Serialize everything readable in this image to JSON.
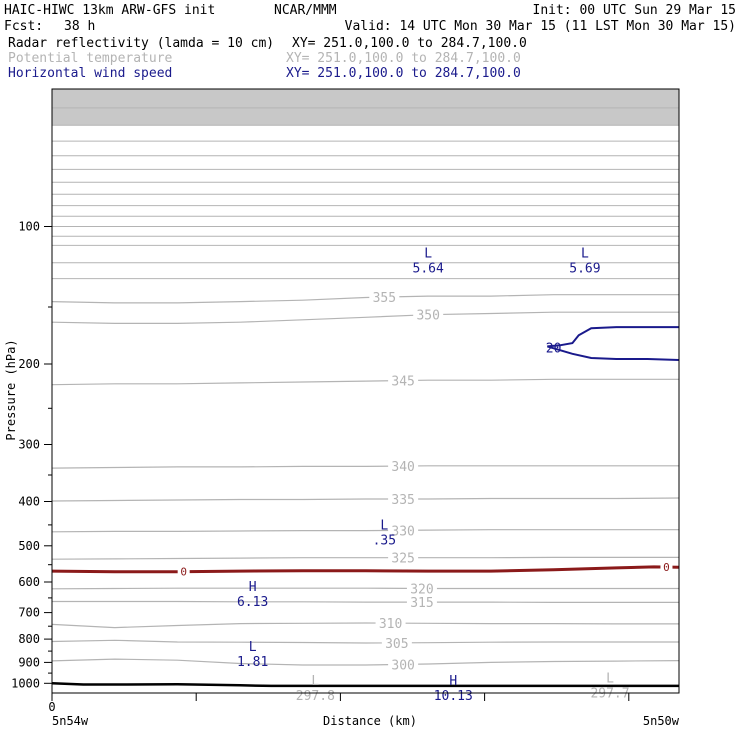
{
  "header": {
    "model": "HAIC-HIWC 13km ARW-GFS init",
    "org": "NCAR/MMM",
    "init": "Init: 00 UTC Sun 29 Mar 15",
    "fcst_label": "Fcst:",
    "fcst_value": "38 h",
    "valid": "Valid: 14 UTC Mon 30 Mar 15 (11 LST Mon 30 Mar 15)"
  },
  "fields": [
    {
      "name": "Radar reflectivity (lamda = 10 cm)",
      "xy": "XY= 251.0,100.0 to 284.7,100.0",
      "color": "#000000"
    },
    {
      "name": "Potential temperature",
      "xy": "XY= 251.0,100.0 to 284.7,100.0",
      "color": "#b4b4b4"
    },
    {
      "name": "Horizontal wind speed",
      "xy": "XY= 251.0,100.0 to 284.7,100.0",
      "color": "#1a1a8c"
    }
  ],
  "colors": {
    "theta": "#b4b4b4",
    "wind": "#1a1a8c",
    "reflectivity": "#8b1a1a",
    "ground": "#000000",
    "sky_fill": "#c8c8c8"
  },
  "chart_data": {
    "type": "cross-section",
    "ylabel": "Pressure (hPa)",
    "xlabel": "Distance (km)",
    "x_start_label": "5n54w",
    "x_end_label": "5n50w",
    "x_zero_label": "0",
    "x_range": [
      0,
      10
    ],
    "y_range": [
      1050,
      50
    ],
    "y_scale": "log",
    "y_ticks": [
      100,
      200,
      300,
      400,
      500,
      600,
      700,
      800,
      900,
      1000
    ],
    "x_ticks": [
      0,
      2.3,
      4.6,
      6.9,
      9.2
    ],
    "theta_contours": [
      {
        "label": "355",
        "x": [
          0,
          1,
          2,
          3,
          4,
          5,
          6,
          7,
          8,
          9,
          10
        ],
        "p": [
          146,
          147,
          147,
          146,
          145,
          143,
          142,
          142,
          141,
          141,
          141
        ],
        "label_x": 5.3
      },
      {
        "label": "350",
        "x": [
          0,
          1,
          2,
          3,
          4,
          5,
          6,
          7,
          8,
          9,
          10
        ],
        "p": [
          162,
          163,
          163,
          162,
          160,
          158,
          156,
          155,
          154,
          154,
          154
        ],
        "label_x": 6.0
      },
      {
        "label": "345",
        "x": [
          0,
          1,
          2,
          3,
          4,
          5,
          6,
          7,
          8,
          9,
          10
        ],
        "p": [
          222,
          221,
          221,
          220,
          219,
          218,
          217,
          217,
          216,
          216,
          216
        ],
        "label_x": 5.6
      },
      {
        "label": "340",
        "x": [
          0,
          1,
          2,
          3,
          4,
          5,
          6,
          7,
          8,
          9,
          10
        ],
        "p": [
          338,
          337,
          336,
          336,
          335,
          335,
          334,
          334,
          334,
          334,
          334
        ],
        "label_x": 5.6
      },
      {
        "label": "335",
        "x": [
          0,
          1,
          2,
          3,
          4,
          5,
          6,
          7,
          8,
          9,
          10
        ],
        "p": [
          399,
          398,
          397,
          396,
          396,
          395,
          395,
          394,
          394,
          394,
          393
        ],
        "label_x": 5.6
      },
      {
        "label": "330",
        "x": [
          0,
          1,
          2,
          3,
          4,
          5,
          6,
          7,
          8,
          9,
          10
        ],
        "p": [
          466,
          465,
          465,
          464,
          463,
          463,
          462,
          461,
          461,
          461,
          461
        ],
        "label_x": 5.6
      },
      {
        "label": "325",
        "x": [
          0,
          1,
          2,
          3,
          4,
          5,
          6,
          7,
          8,
          9,
          10
        ],
        "p": [
          535,
          534,
          533,
          532,
          531,
          531,
          531,
          531,
          530,
          530,
          530
        ],
        "label_x": 5.6
      },
      {
        "label": "320",
        "x": [
          0,
          1,
          2,
          3,
          4,
          5,
          6,
          7,
          8,
          9,
          10
        ],
        "p": [
          621,
          620,
          619,
          619,
          619,
          619,
          620,
          620,
          620,
          620,
          620
        ],
        "label_x": 5.9
      },
      {
        "label": "315",
        "x": [
          0,
          1,
          2,
          3,
          4,
          5,
          6,
          7,
          8,
          9,
          10
        ],
        "p": [
          662,
          662,
          662,
          663,
          663,
          664,
          664,
          664,
          665,
          665,
          665
        ],
        "label_x": 5.9
      },
      {
        "label": "310",
        "x": [
          0,
          1,
          2,
          3,
          4,
          5,
          6,
          7,
          8,
          9,
          10
        ],
        "p": [
          743,
          755,
          747,
          740,
          739,
          738,
          739,
          740,
          740,
          741,
          741
        ],
        "label_x": 5.4
      },
      {
        "label": "305",
        "x": [
          0,
          1,
          2,
          3,
          4,
          5,
          6,
          7,
          8,
          9,
          10
        ],
        "p": [
          810,
          805,
          812,
          813,
          814,
          816,
          815,
          813,
          812,
          812,
          812
        ],
        "label_x": 5.5
      },
      {
        "label": "300",
        "x": [
          0,
          1,
          2,
          3,
          4,
          5,
          6,
          7,
          8,
          9,
          10
        ],
        "p": [
          893,
          885,
          890,
          905,
          912,
          912,
          907,
          900,
          896,
          894,
          892
        ],
        "label_x": 5.6
      }
    ],
    "sky_levels": [
      55,
      60,
      65,
      70,
      75,
      80,
      85,
      90,
      95,
      100,
      105,
      110,
      120,
      130
    ],
    "reflectivity_contour": {
      "label": "0",
      "label_positions": [
        2.1,
        9.8
      ],
      "x": [
        0,
        1,
        2,
        3,
        4,
        5,
        6,
        7,
        8,
        9,
        9.6,
        10
      ],
      "p": [
        568,
        570,
        570,
        568,
        567,
        567,
        568,
        568,
        564,
        559,
        556,
        557
      ]
    },
    "wind_contour": {
      "label": "20",
      "x": [
        7.9,
        8.1,
        8.3,
        8.4,
        8.6,
        9.0,
        9.5,
        10
      ],
      "p": [
        183,
        182,
        180,
        173,
        167,
        166,
        166,
        166
      ],
      "x2": [
        7.9,
        8.3,
        8.6,
        9.0,
        9.5,
        10
      ],
      "p2": [
        183,
        190,
        194,
        195,
        195,
        196
      ]
    },
    "ground": {
      "x": [
        0,
        0.5,
        1,
        2,
        3,
        3.5,
        4,
        5,
        6,
        7,
        8,
        9,
        10
      ],
      "p": [
        1000,
        1006,
        1006,
        1005,
        1010,
        1013,
        1013,
        1013,
        1013,
        1013,
        1013,
        1013,
        1013
      ]
    },
    "extrema": [
      {
        "kind": "L",
        "value": "5.64",
        "x": 6.0,
        "p": 117,
        "color": "#1a1a8c"
      },
      {
        "kind": "L",
        "value": "5.69",
        "x": 8.5,
        "p": 117,
        "color": "#1a1a8c"
      },
      {
        "kind": "L",
        "value": ".35",
        "x": 5.3,
        "p": 460,
        "color": "#1a1a8c"
      },
      {
        "kind": "H",
        "value": "6.13",
        "x": 3.2,
        "p": 628,
        "color": "#1a1a8c"
      },
      {
        "kind": "L",
        "value": "1.81",
        "x": 3.2,
        "p": 850,
        "color": "#1a1a8c"
      },
      {
        "kind": "L",
        "value": "297.8",
        "x": 4.2,
        "p": 1008,
        "color": "#b4b4b4"
      },
      {
        "kind": "H",
        "value": "10.13",
        "x": 6.4,
        "p": 1008,
        "color": "#1a1a8c"
      },
      {
        "kind": "L",
        "value": "297.7",
        "x": 8.9,
        "p": 995,
        "color": "#b4b4b4"
      }
    ]
  }
}
